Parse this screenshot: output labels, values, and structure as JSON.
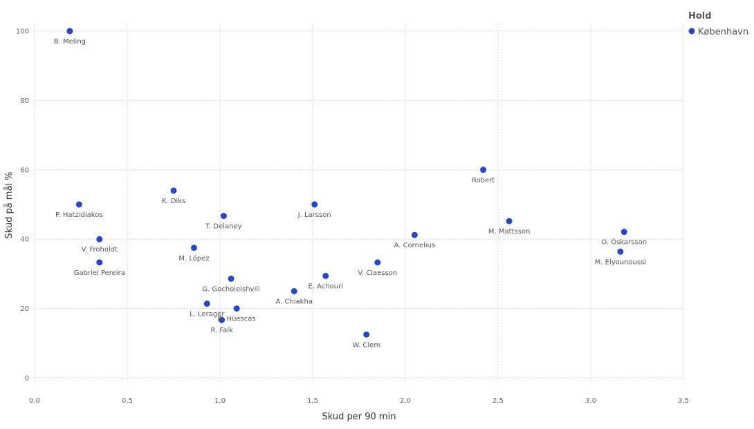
{
  "chart_data": {
    "type": "scatter",
    "xlabel": "Skud per 90 min",
    "ylabel": "Skud på mål %",
    "xlim": [
      0,
      3.5
    ],
    "ylim": [
      0,
      100
    ],
    "x_ticks": [
      "0,0",
      "0,5",
      "1,0",
      "1,5",
      "2,0",
      "2,5",
      "3,0",
      "3,5"
    ],
    "y_ticks": [
      "0",
      "20",
      "40",
      "60",
      "80",
      "100"
    ],
    "grid": true,
    "legend": {
      "title": "Hold",
      "position": "top-right",
      "items": [
        "København"
      ]
    },
    "colors": {
      "marker": "#2a46c4"
    },
    "series": [
      {
        "name": "København",
        "points": [
          {
            "label": "B. Meling",
            "x": 0.19,
            "y": 100
          },
          {
            "label": "P. Hatzidiakos",
            "x": 0.24,
            "y": 50
          },
          {
            "label": "V. Froholdt",
            "x": 0.35,
            "y": 40
          },
          {
            "label": "Gabriel Pereira",
            "x": 0.35,
            "y": 33.3
          },
          {
            "label": "K. Diks",
            "x": 0.75,
            "y": 54
          },
          {
            "label": "M. López",
            "x": 0.86,
            "y": 37.5
          },
          {
            "label": "T. Delaney",
            "x": 1.02,
            "y": 46.7
          },
          {
            "label": "G. Gocholeishvili",
            "x": 1.06,
            "y": 28.6
          },
          {
            "label": "L. Lerager",
            "x": 0.93,
            "y": 21.4
          },
          {
            "label": "R. Huescas",
            "x": 1.09,
            "y": 20
          },
          {
            "label": "R. Falk",
            "x": 1.01,
            "y": 16.7
          },
          {
            "label": "A. Chiakha",
            "x": 1.4,
            "y": 25
          },
          {
            "label": "J. Larsson",
            "x": 1.51,
            "y": 50
          },
          {
            "label": "E. Achouri",
            "x": 1.57,
            "y": 29.4
          },
          {
            "label": "W. Clem",
            "x": 1.79,
            "y": 12.5
          },
          {
            "label": "V. Claesson",
            "x": 1.85,
            "y": 33.3
          },
          {
            "label": "A. Cornelius",
            "x": 2.05,
            "y": 41.2
          },
          {
            "label": "Robert",
            "x": 2.42,
            "y": 60
          },
          {
            "label": "M. Mattsson",
            "x": 2.56,
            "y": 45.2
          },
          {
            "label": "O. Óskarsson",
            "x": 3.18,
            "y": 42.1
          },
          {
            "label": "M. Elyounoussi",
            "x": 3.16,
            "y": 36.4
          }
        ]
      }
    ]
  }
}
